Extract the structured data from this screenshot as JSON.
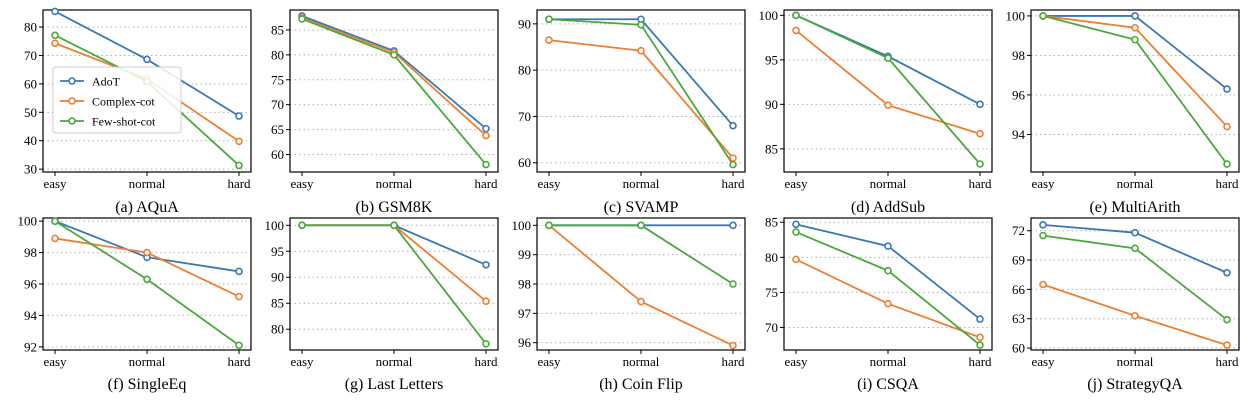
{
  "figure": {
    "legend": [
      "AdoT",
      "Complex-cot",
      "Few-shot-cot"
    ],
    "colors": [
      "#3a78b5",
      "#ee7f32",
      "#4aa83c"
    ]
  },
  "chart_data": [
    {
      "type": "line",
      "title": "(a) AQuA",
      "categories": [
        "easy",
        "normal",
        "hard"
      ],
      "ylim": [
        29,
        86
      ],
      "yticks": [
        30,
        40,
        50,
        60,
        70,
        80
      ],
      "series": [
        {
          "name": "AdoT",
          "values": [
            85.5,
            68.6,
            48.7
          ]
        },
        {
          "name": "Complex-cot",
          "values": [
            74.3,
            61.7,
            39.8
          ]
        },
        {
          "name": "Few-shot-cot",
          "values": [
            77.1,
            60.8,
            31.3
          ]
        }
      ],
      "legend": "upper-left"
    },
    {
      "type": "line",
      "title": "(b) GSM8K",
      "categories": [
        "easy",
        "normal",
        "hard"
      ],
      "ylim": [
        56.5,
        89
      ],
      "yticks": [
        60,
        65,
        70,
        75,
        80,
        85
      ],
      "series": [
        {
          "name": "AdoT",
          "values": [
            87.8,
            80.8,
            65.2
          ]
        },
        {
          "name": "Complex-cot",
          "values": [
            87.4,
            80.5,
            63.8
          ]
        },
        {
          "name": "Few-shot-cot",
          "values": [
            87.2,
            80.0,
            58.0
          ]
        }
      ]
    },
    {
      "type": "line",
      "title": "(c) SVAMP",
      "categories": [
        "easy",
        "normal",
        "hard"
      ],
      "ylim": [
        58,
        93
      ],
      "yticks": [
        60,
        70,
        80,
        90
      ],
      "series": [
        {
          "name": "AdoT",
          "values": [
            91.0,
            91.0,
            68.0
          ]
        },
        {
          "name": "Complex-cot",
          "values": [
            86.5,
            84.2,
            61.0
          ]
        },
        {
          "name": "Few-shot-cot",
          "values": [
            91.0,
            89.8,
            59.6
          ]
        }
      ]
    },
    {
      "type": "line",
      "title": "(d) AddSub",
      "categories": [
        "easy",
        "normal",
        "hard"
      ],
      "ylim": [
        82.4,
        100.6
      ],
      "yticks": [
        85,
        90,
        95,
        100
      ],
      "series": [
        {
          "name": "AdoT",
          "values": [
            100.0,
            95.4,
            90.0
          ]
        },
        {
          "name": "Complex-cot",
          "values": [
            98.3,
            89.9,
            86.7
          ]
        },
        {
          "name": "Few-shot-cot",
          "values": [
            100.0,
            95.2,
            83.3
          ]
        }
      ]
    },
    {
      "type": "line",
      "title": "(e) MultiArith",
      "categories": [
        "easy",
        "normal",
        "hard"
      ],
      "ylim": [
        92.1,
        100.3
      ],
      "yticks": [
        94,
        96,
        98,
        100
      ],
      "series": [
        {
          "name": "AdoT",
          "values": [
            100.0,
            100.0,
            96.3
          ]
        },
        {
          "name": "Complex-cot",
          "values": [
            100.0,
            99.4,
            94.4
          ]
        },
        {
          "name": "Few-shot-cot",
          "values": [
            100.0,
            98.8,
            92.5
          ]
        }
      ]
    },
    {
      "type": "line",
      "title": "(f) SingleEq",
      "categories": [
        "easy",
        "normal",
        "hard"
      ],
      "ylim": [
        91.8,
        100.2
      ],
      "yticks": [
        92,
        94,
        96,
        98,
        100
      ],
      "series": [
        {
          "name": "AdoT",
          "values": [
            100.0,
            97.7,
            96.8
          ]
        },
        {
          "name": "Complex-cot",
          "values": [
            98.9,
            98.0,
            95.2
          ]
        },
        {
          "name": "Few-shot-cot",
          "values": [
            100.0,
            96.3,
            92.1
          ]
        }
      ]
    },
    {
      "type": "line",
      "title": "(g) Last Letters",
      "categories": [
        "easy",
        "normal",
        "hard"
      ],
      "ylim": [
        76,
        101.4
      ],
      "yticks": [
        80,
        85,
        90,
        95,
        100
      ],
      "series": [
        {
          "name": "AdoT",
          "values": [
            100.0,
            100.0,
            92.4
          ]
        },
        {
          "name": "Complex-cot",
          "values": [
            100.0,
            100.0,
            85.4
          ]
        },
        {
          "name": "Few-shot-cot",
          "values": [
            100.0,
            100.0,
            77.2
          ]
        }
      ]
    },
    {
      "type": "line",
      "title": "(h) Coin Flip",
      "categories": [
        "easy",
        "normal",
        "hard"
      ],
      "ylim": [
        95.75,
        100.25
      ],
      "yticks": [
        96,
        97,
        98,
        99,
        100
      ],
      "series": [
        {
          "name": "AdoT",
          "values": [
            100.0,
            100.0,
            100.0
          ]
        },
        {
          "name": "Complex-cot",
          "values": [
            100.0,
            97.4,
            95.9
          ]
        },
        {
          "name": "Few-shot-cot",
          "values": [
            100.0,
            100.0,
            98.0
          ]
        }
      ]
    },
    {
      "type": "line",
      "title": "(i) CSQA",
      "categories": [
        "easy",
        "normal",
        "hard"
      ],
      "ylim": [
        66.8,
        85.6
      ],
      "yticks": [
        70,
        75,
        80,
        85
      ],
      "series": [
        {
          "name": "AdoT",
          "values": [
            84.7,
            81.6,
            71.2
          ]
        },
        {
          "name": "Complex-cot",
          "values": [
            79.7,
            73.4,
            68.6
          ]
        },
        {
          "name": "Few-shot-cot",
          "values": [
            83.6,
            78.1,
            67.5
          ]
        }
      ]
    },
    {
      "type": "line",
      "title": "(j) StrategyQA",
      "categories": [
        "easy",
        "normal",
        "hard"
      ],
      "ylim": [
        59.8,
        73.3
      ],
      "yticks": [
        60,
        63,
        66,
        69,
        72
      ],
      "series": [
        {
          "name": "AdoT",
          "values": [
            72.6,
            71.8,
            67.7
          ]
        },
        {
          "name": "Complex-cot",
          "values": [
            66.5,
            63.3,
            60.3
          ]
        },
        {
          "name": "Few-shot-cot",
          "values": [
            71.5,
            70.2,
            62.9
          ]
        }
      ]
    }
  ]
}
